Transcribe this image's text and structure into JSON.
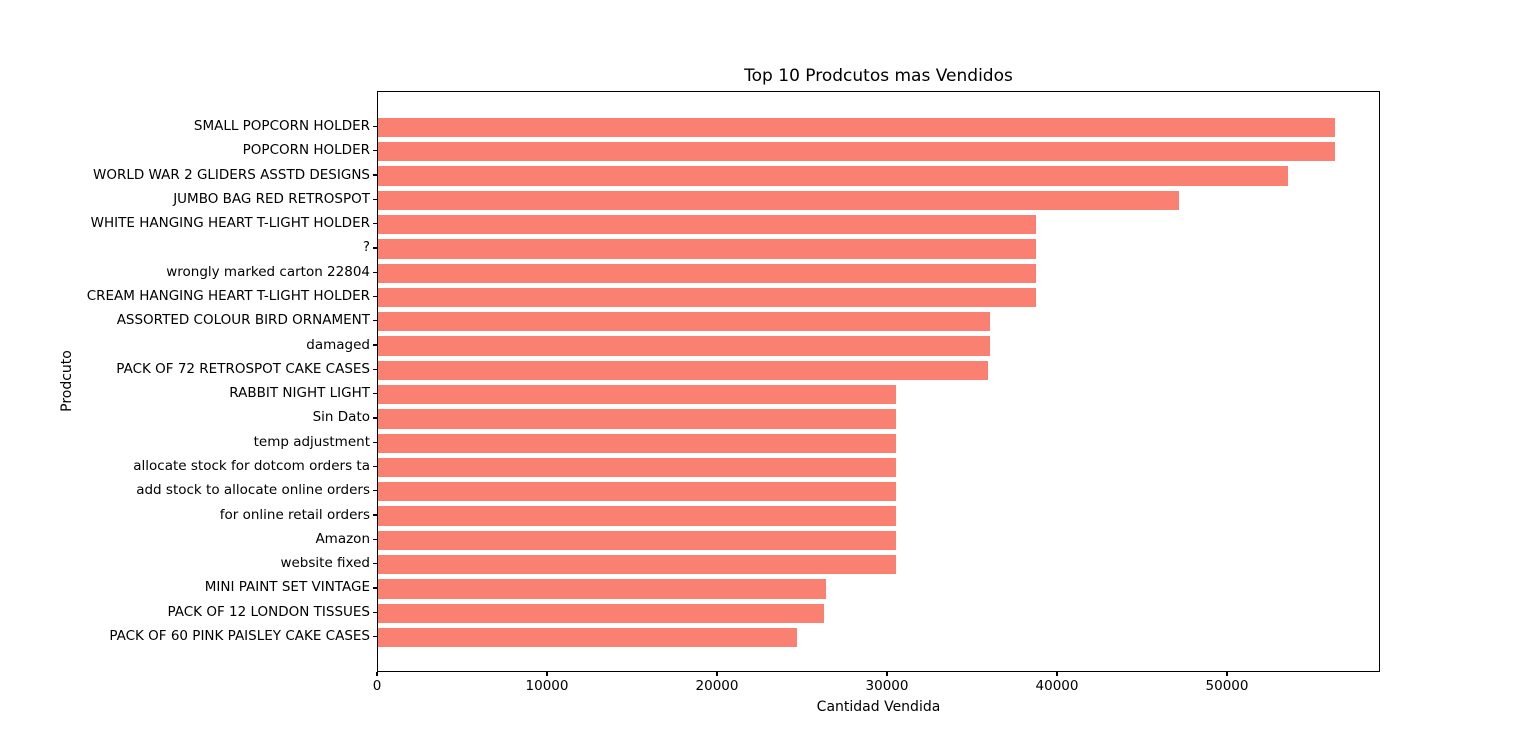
{
  "figure": {
    "background": "#FFFFFF"
  },
  "chart_data": {
    "type": "bar",
    "orientation": "horizontal",
    "title": "Top 10 Prodcutos mas Vendidos",
    "xlabel": "Cantidad Vendida",
    "ylabel": "Prodcuto",
    "bar_color": "#FA8072",
    "grid": false,
    "legend_position": "none",
    "xlim": [
      0,
      59000
    ],
    "x_ticks": [
      "0",
      "10000",
      "20000",
      "30000",
      "40000",
      "50000"
    ],
    "x_tick_values": [
      0,
      10000,
      20000,
      30000,
      40000,
      50000
    ],
    "categories": [
      "SMALL POPCORN HOLDER",
      "POPCORN HOLDER",
      "WORLD WAR 2 GLIDERS ASSTD DESIGNS",
      "JUMBO BAG RED RETROSPOT",
      "WHITE HANGING HEART T-LIGHT HOLDER",
      "?",
      "wrongly marked carton 22804",
      "CREAM HANGING HEART T-LIGHT HOLDER",
      "ASSORTED COLOUR BIRD ORNAMENT",
      "damaged",
      "PACK OF 72 RETROSPOT CAKE CASES",
      "RABBIT NIGHT LIGHT",
      "Sin Dato",
      "temp adjustment",
      "allocate stock for dotcom orders ta",
      "add stock to allocate online orders",
      "for online retail orders",
      "Amazon",
      "website fixed",
      "MINI PAINT SET VINTAGE",
      "PACK OF 12 LONDON TISSUES",
      "PACK OF 60 PINK PAISLEY CAKE CASES"
    ],
    "values": [
      56400,
      56400,
      53650,
      47200,
      38800,
      38800,
      38800,
      38800,
      36050,
      36050,
      35950,
      30550,
      30550,
      30550,
      30550,
      30550,
      30550,
      30550,
      30550,
      26430,
      26310,
      24720
    ]
  }
}
